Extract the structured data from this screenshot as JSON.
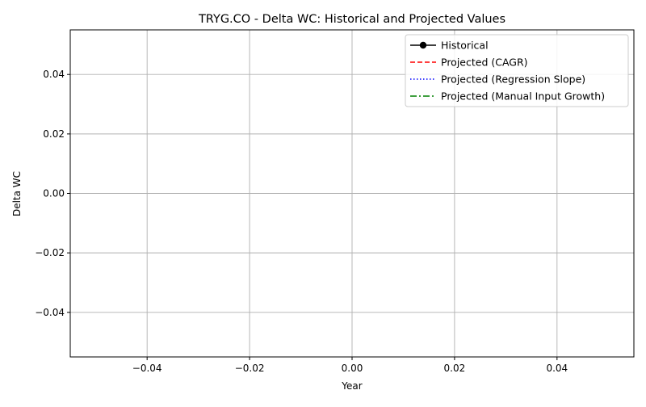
{
  "chart_data": {
    "type": "line",
    "title": "TRYG.CO - Delta WC: Historical and Projected Values",
    "xlabel": "Year",
    "ylabel": "Delta WC",
    "xlim": [
      -0.055,
      0.055
    ],
    "ylim": [
      -0.055,
      0.055
    ],
    "x_ticks": [
      -0.04,
      -0.02,
      0.0,
      0.02,
      0.04
    ],
    "x_tick_labels": [
      "−0.04",
      "−0.02",
      "0.00",
      "0.02",
      "0.04"
    ],
    "y_ticks": [
      0.04,
      0.02,
      0.0,
      -0.02,
      -0.04
    ],
    "y_tick_labels": [
      "0.04",
      "0.02",
      "0.00",
      "−0.02",
      "−0.04"
    ],
    "grid": true,
    "legend_position": "top-right",
    "series": [
      {
        "name": "Historical",
        "color": "#000000",
        "style": "solid",
        "marker": "circle",
        "x": [],
        "y": []
      },
      {
        "name": "Projected (CAGR)",
        "color": "#ff0000",
        "style": "dashed",
        "marker": "none",
        "x": [],
        "y": []
      },
      {
        "name": "Projected (Regression Slope)",
        "color": "#0000ff",
        "style": "dotted",
        "marker": "none",
        "x": [],
        "y": []
      },
      {
        "name": "Projected (Manual Input Growth)",
        "color": "#008000",
        "style": "dashdot",
        "marker": "none",
        "x": [],
        "y": []
      }
    ]
  }
}
